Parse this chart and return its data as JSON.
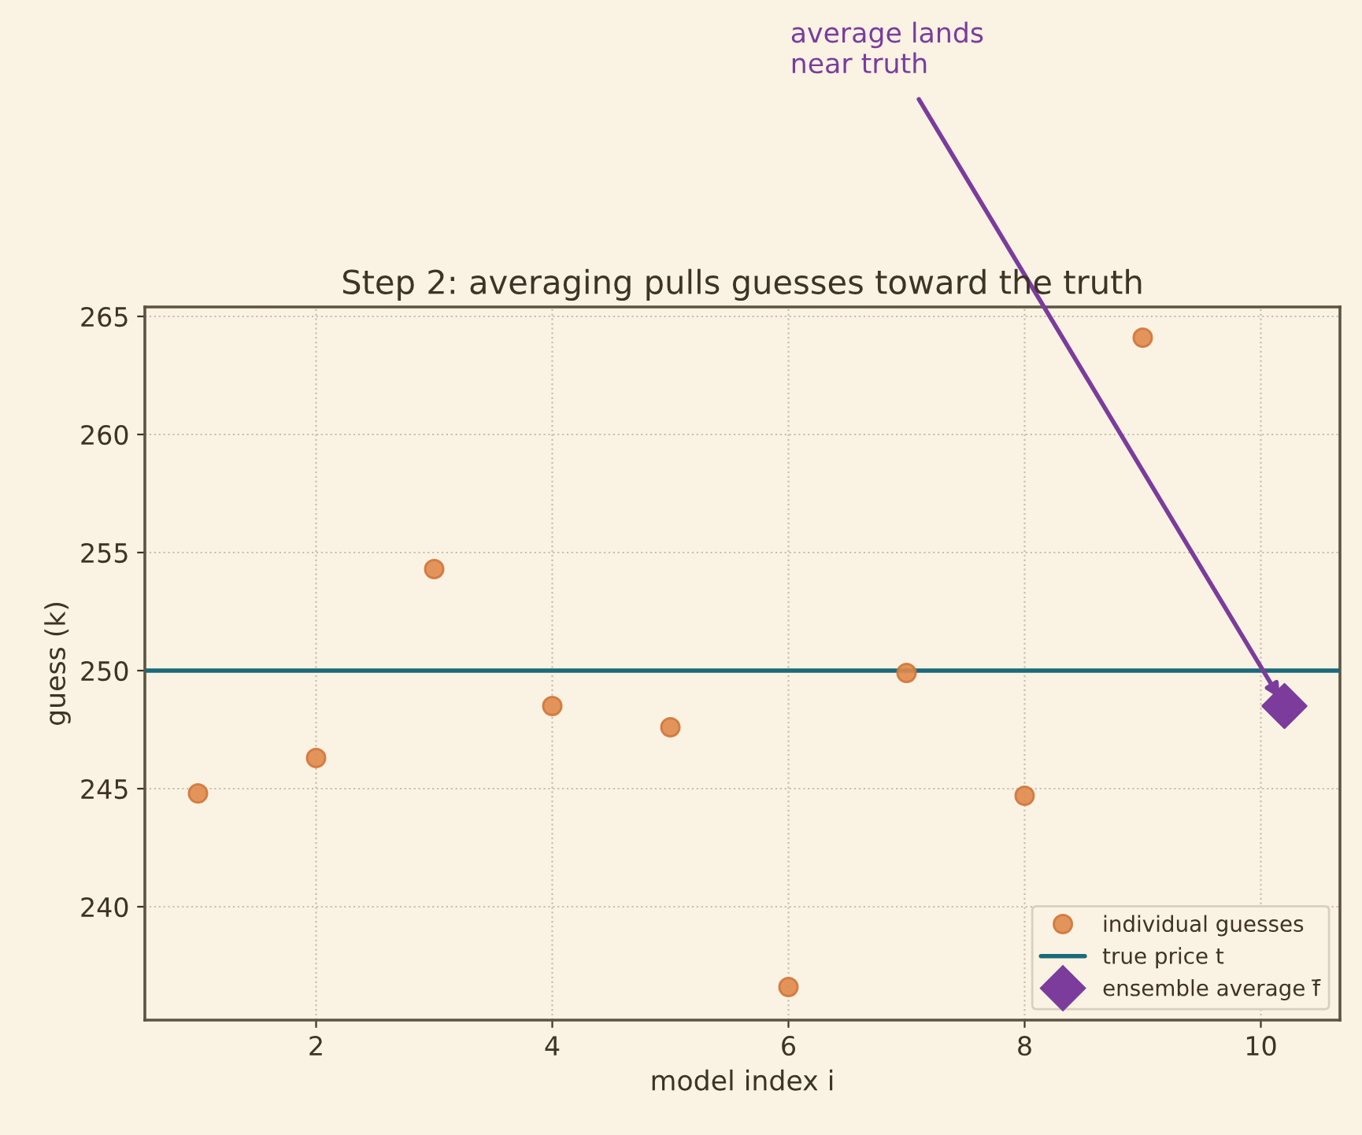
{
  "chart_data": {
    "type": "scatter",
    "title": "Step 2: averaging pulls guesses toward the truth",
    "xlabel": "model index i",
    "ylabel": "guess (k)",
    "series": [
      {
        "name": "individual guesses",
        "color": "#e0894b",
        "marker": "circle",
        "x": [
          1,
          2,
          3,
          4,
          5,
          6,
          7,
          8,
          9
        ],
        "values": [
          244.8,
          246.3,
          254.3,
          248.5,
          247.6,
          236.6,
          249.9,
          244.7,
          264.1
        ]
      },
      {
        "name": "ensemble average f̄",
        "color": "#7b3c9c",
        "marker": "diamond",
        "x": [
          10.2
        ],
        "values": [
          248.5
        ]
      }
    ],
    "ref_lines": [
      {
        "axis": "y",
        "value": 250,
        "label": "true price t",
        "color": "#1b6a7a",
        "line_style": "solid"
      }
    ],
    "annotations": [
      {
        "text": "average lands\nnear truth",
        "x": 10.2,
        "y": 248.5
      }
    ],
    "xlim": [
      0.55,
      10.67
    ],
    "ylim": [
      235.2,
      265.4
    ],
    "xticks": [
      2,
      4,
      6,
      8,
      10
    ],
    "yticks": [
      240,
      245,
      250,
      255,
      260,
      265
    ],
    "grid": true,
    "legend": "bottom right"
  }
}
